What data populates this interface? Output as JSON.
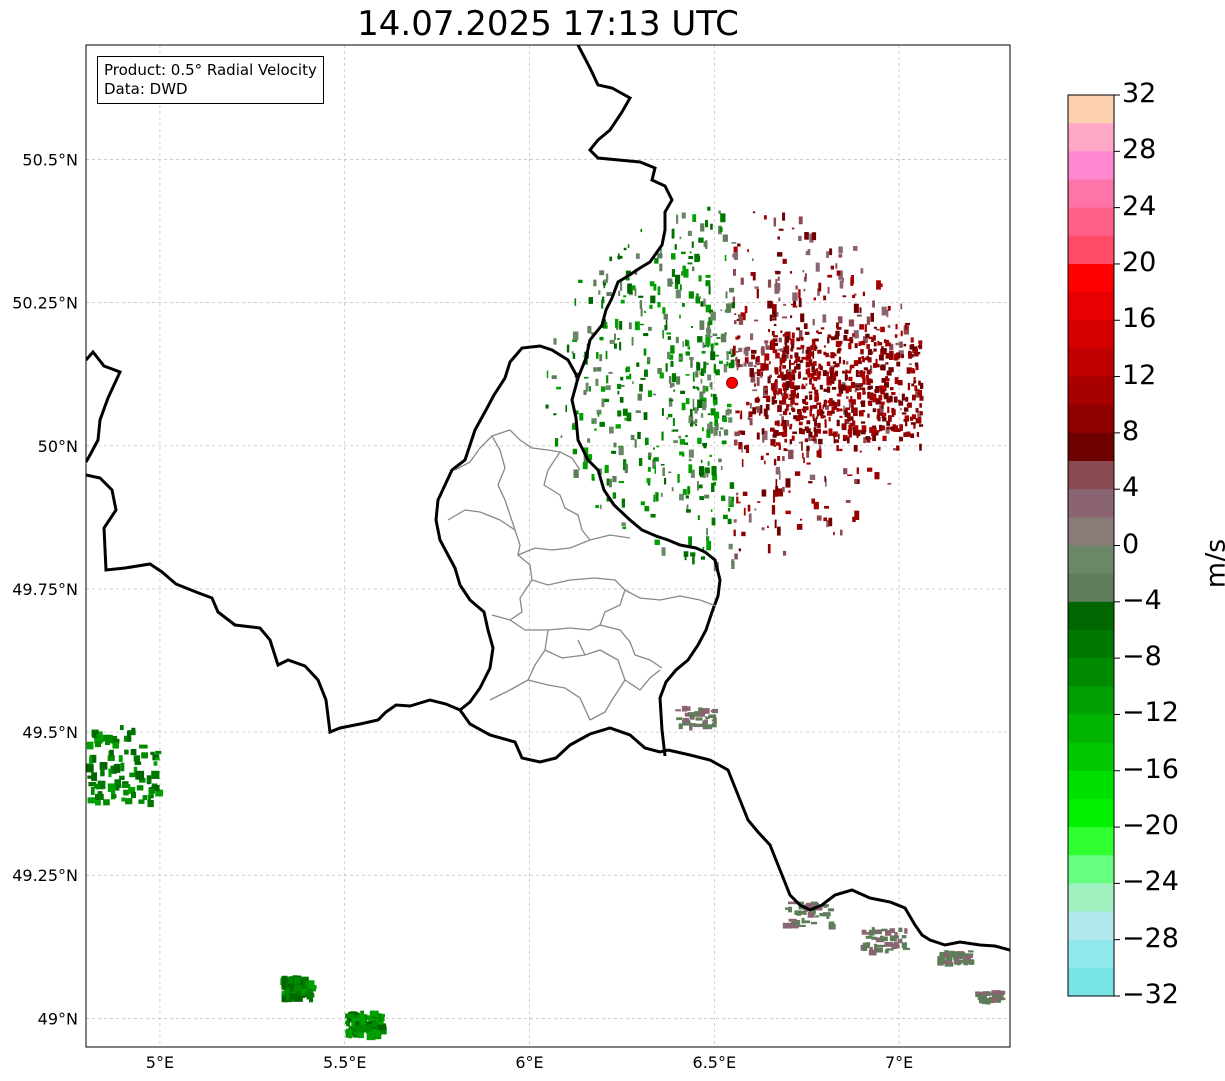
{
  "title": "14.07.2025 17:13 UTC",
  "product_box": {
    "line1": "Product: 0.5° Radial Velocity",
    "line2": "Data: DWD"
  },
  "axes": {
    "lon_labels": [
      "5°E",
      "5.5°E",
      "6°E",
      "6.5°E",
      "7°E"
    ],
    "lon_values": [
      5.0,
      5.5,
      6.0,
      6.5,
      7.0
    ],
    "lat_labels": [
      "49°N",
      "49.25°N",
      "49.5°N",
      "49.75°N",
      "50°N",
      "50.25°N",
      "50.5°N"
    ],
    "lat_values": [
      49.0,
      49.25,
      49.5,
      49.75,
      50.0,
      50.25,
      50.5
    ],
    "lon_range": [
      4.8,
      7.3
    ],
    "lat_range": [
      48.95,
      50.7
    ],
    "grid": true
  },
  "radar_site": {
    "lon": 6.548,
    "lat": 50.11,
    "color": "#ff0000"
  },
  "colorbar": {
    "unit": "m/s",
    "range": [
      -32,
      32
    ],
    "tick_labels": [
      "32",
      "28",
      "24",
      "20",
      "16",
      "12",
      "8",
      "4",
      "0",
      "−4",
      "−8",
      "−12",
      "−16",
      "−20",
      "−24",
      "−28",
      "−32"
    ],
    "colors_top_to_bottom": [
      "#ffd0b0",
      "#ffa8c8",
      "#ff88d0",
      "#ff74a8",
      "#ff6088",
      "#ff4a68",
      "#ff0000",
      "#e80000",
      "#d40000",
      "#c00000",
      "#a80000",
      "#900000",
      "#6e0000",
      "#8a4a52",
      "#8a6470",
      "#8a7a78",
      "#6a8868",
      "#5e7e5a",
      "#006600",
      "#007800",
      "#008a00",
      "#00a000",
      "#00b400",
      "#00c800",
      "#00e000",
      "#00f000",
      "#30ff30",
      "#66ff80",
      "#a0f0c0",
      "#b0e8ec",
      "#90e8ec",
      "#78e4e8"
    ]
  }
}
